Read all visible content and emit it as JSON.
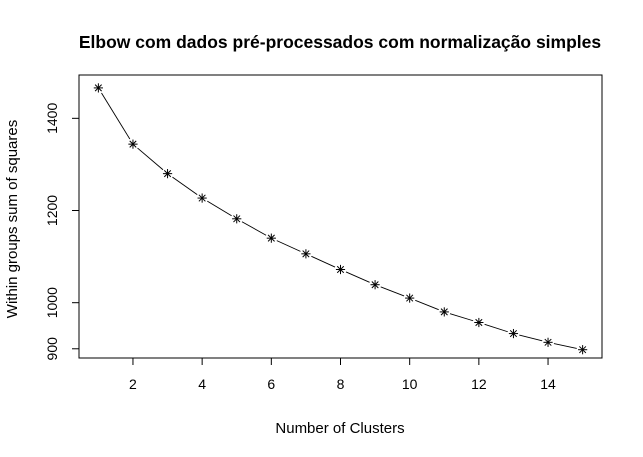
{
  "chart_data": {
    "type": "line",
    "title": "Elbow com dados pré-processados com normalização simples",
    "xlabel": "Number of Clusters",
    "ylabel": "Within groups sum of squares",
    "x": [
      1,
      2,
      3,
      4,
      5,
      6,
      7,
      8,
      9,
      10,
      11,
      12,
      13,
      14,
      15
    ],
    "series": [
      {
        "values": [
          1466,
          1344,
          1280,
          1227,
          1182,
          1140,
          1106,
          1072,
          1039,
          1010,
          980,
          957,
          933,
          914,
          898
        ]
      }
    ],
    "xlim": [
      0.44,
      15.56
    ],
    "ylim": [
      880,
      1494
    ],
    "xticks": [
      2,
      4,
      6,
      8,
      10,
      12,
      14
    ],
    "yticks": [
      900,
      1000,
      1200,
      1400
    ],
    "marker": "asterisk",
    "grid": false,
    "line_color": "#000000"
  }
}
